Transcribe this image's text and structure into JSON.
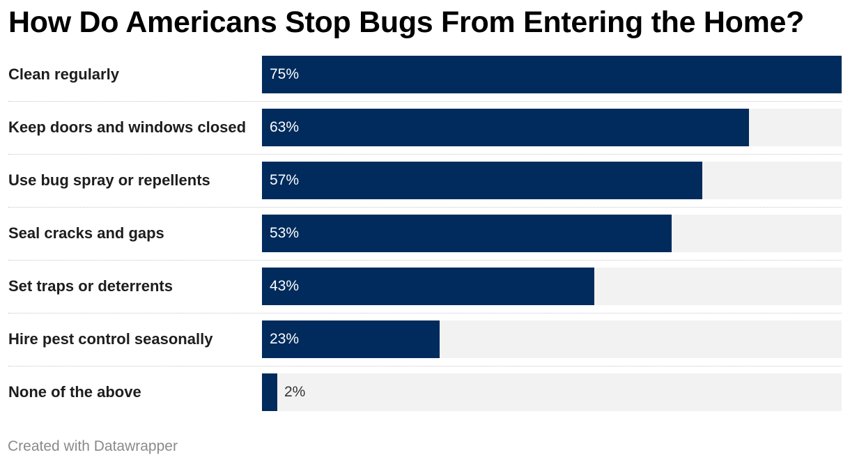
{
  "chart_data": {
    "type": "bar",
    "orientation": "horizontal",
    "title": "How Do Americans Stop Bugs From Entering the Home?",
    "categories": [
      "Clean regularly",
      "Keep doors and windows closed",
      "Use bug spray or repellents",
      "Seal cracks and gaps",
      "Set traps or deterrents",
      "Hire pest control seasonally",
      "None of the above"
    ],
    "values": [
      75,
      63,
      57,
      53,
      43,
      23,
      2
    ],
    "value_labels": [
      "75%",
      "63%",
      "57%",
      "53%",
      "43%",
      "23%",
      "2%"
    ],
    "xlim": [
      0,
      75
    ],
    "grid": false,
    "legend": "none"
  },
  "colors": {
    "bar": "#002b5c",
    "track": "#f2f2f2",
    "label_inside": "#ffffff",
    "label_outside": "#333333"
  },
  "footer": {
    "credit": "Created with Datawrapper"
  }
}
